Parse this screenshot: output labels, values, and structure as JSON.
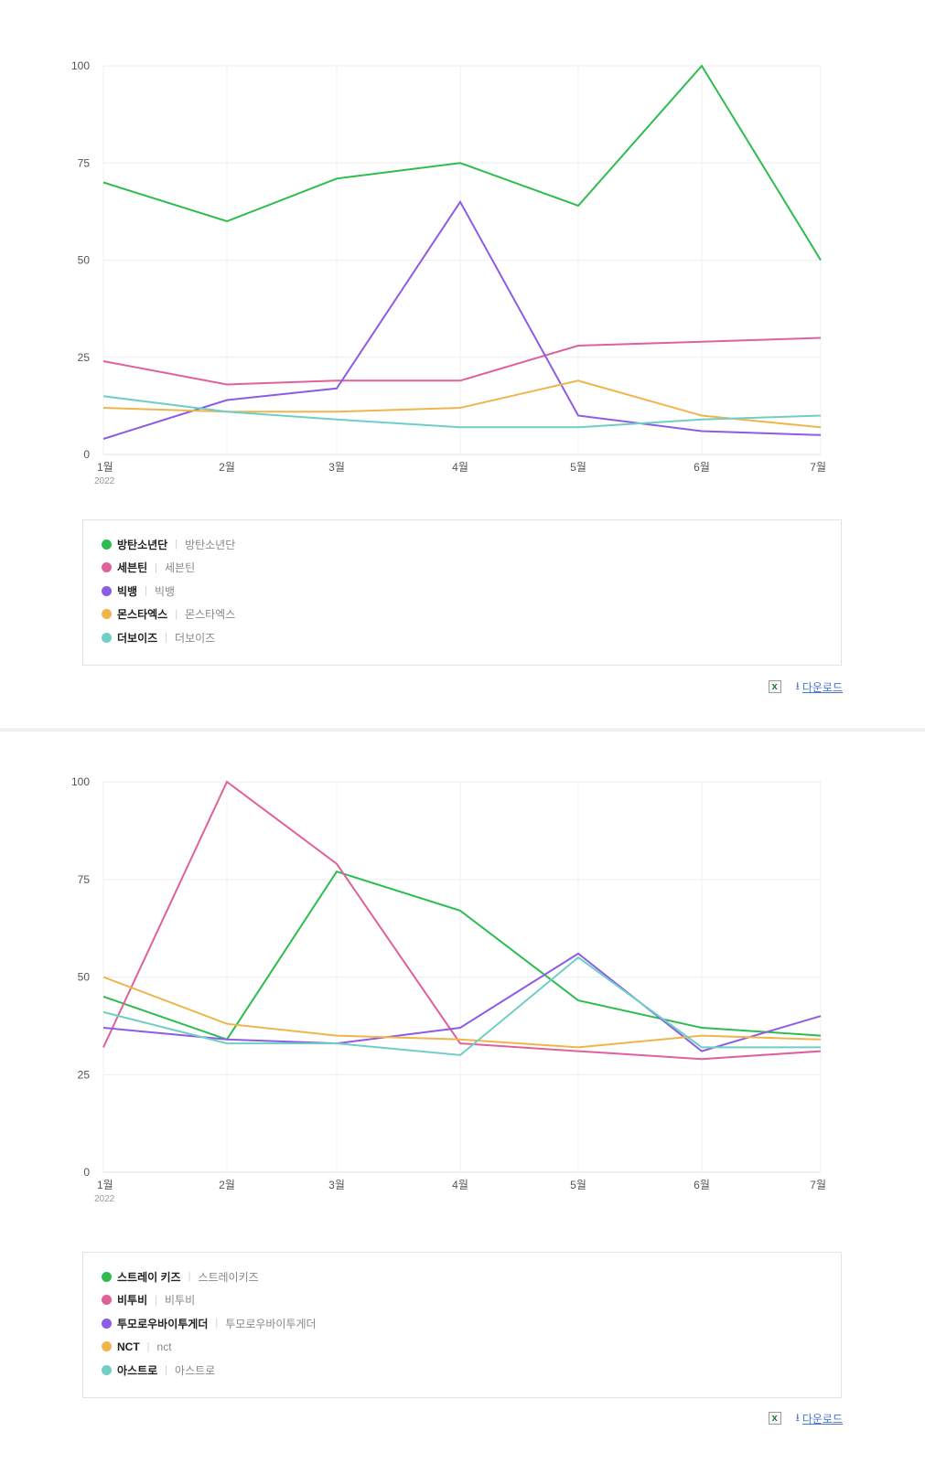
{
  "chart_data": [
    {
      "type": "line",
      "categories": [
        "1월",
        "2월",
        "3월",
        "4월",
        "5월",
        "6월",
        "7월"
      ],
      "x_sublabel": "2022",
      "ylim": [
        0,
        100
      ],
      "yticks": [
        "0",
        "25",
        "50",
        "75",
        "100"
      ],
      "grid": true,
      "series": [
        {
          "name": "방탄소년단",
          "keyword": "방탄소년단",
          "color": "#2dbd4f",
          "values": [
            70,
            60,
            71,
            75,
            64,
            100,
            50
          ]
        },
        {
          "name": "세븐틴",
          "keyword": "세븐틴",
          "color": "#e0609c",
          "values": [
            24,
            18,
            19,
            19,
            28,
            29,
            30
          ]
        },
        {
          "name": "빅뱅",
          "keyword": "빅뱅",
          "color": "#8c5ce6",
          "values": [
            4,
            14,
            17,
            65,
            10,
            6,
            5
          ]
        },
        {
          "name": "몬스타엑스",
          "keyword": "몬스타엑스",
          "color": "#f0b54a",
          "values": [
            12,
            11,
            11,
            12,
            19,
            10,
            7
          ]
        },
        {
          "name": "더보이즈",
          "keyword": "더보이즈",
          "color": "#6fcfc4",
          "values": [
            15,
            11,
            9,
            7,
            7,
            9,
            10
          ]
        }
      ]
    },
    {
      "type": "line",
      "categories": [
        "1월",
        "2월",
        "3월",
        "4월",
        "5월",
        "6월",
        "7월"
      ],
      "x_sublabel": "2022",
      "ylim": [
        0,
        100
      ],
      "yticks": [
        "0",
        "25",
        "50",
        "75",
        "100"
      ],
      "grid": true,
      "series": [
        {
          "name": "스트레이 키즈",
          "keyword": "스트레이키즈",
          "color": "#2dbd4f",
          "values": [
            45,
            34,
            77,
            67,
            44,
            37,
            35
          ]
        },
        {
          "name": "비투비",
          "keyword": "비투비",
          "color": "#e0609c",
          "values": [
            32,
            100,
            79,
            33,
            31,
            29,
            31
          ]
        },
        {
          "name": "투모로우바이투게더",
          "keyword": "투모로우바이투게더",
          "color": "#8c5ce6",
          "values": [
            37,
            34,
            33,
            37,
            56,
            31,
            40
          ]
        },
        {
          "name": "NCT",
          "keyword": "nct",
          "color": "#f0b54a",
          "values": [
            50,
            38,
            35,
            34,
            32,
            35,
            34
          ]
        },
        {
          "name": "아스트로",
          "keyword": "아스트로",
          "color": "#6fcfc4",
          "values": [
            41,
            33,
            33,
            30,
            55,
            32,
            32
          ]
        }
      ]
    }
  ],
  "tools": {
    "excel_icon": "excel-icon",
    "download_label": "다운로드",
    "download_icon": "download-arrow-icon"
  }
}
